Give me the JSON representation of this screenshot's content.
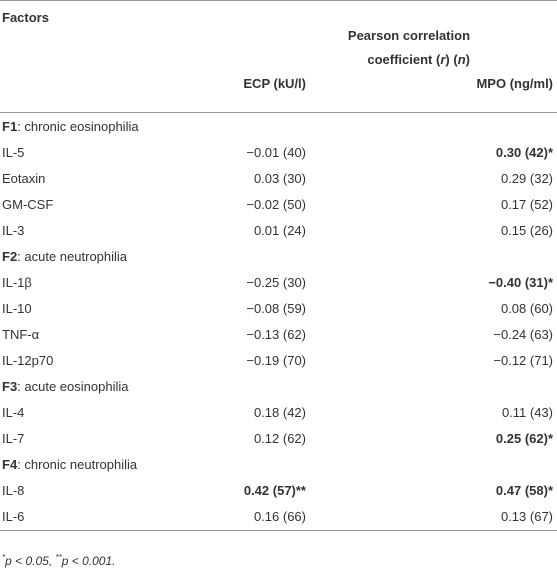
{
  "header": {
    "factors": "Factors",
    "pearson_line1": "Pearson correlation",
    "pearson_line2": "coefficient (r) (n)",
    "col_ecp": "ECP (kU/l)",
    "col_mpo": "MPO (ng/ml)"
  },
  "rows": [
    {
      "type": "section",
      "key": "F1",
      "label": ": chronic eosinophilia"
    },
    {
      "type": "data",
      "factor": "IL-5",
      "ecp": "−0.01 (40)",
      "ecp_bold": false,
      "mpo": "0.30 (42)*",
      "mpo_bold": true
    },
    {
      "type": "data",
      "factor": "Eotaxin",
      "ecp": "0.03 (30)",
      "ecp_bold": false,
      "mpo": "0.29 (32)",
      "mpo_bold": false
    },
    {
      "type": "data",
      "factor": "GM-CSF",
      "ecp": "−0.02 (50)",
      "ecp_bold": false,
      "mpo": "0.17 (52)",
      "mpo_bold": false
    },
    {
      "type": "data",
      "factor": "IL-3",
      "ecp": "0.01 (24)",
      "ecp_bold": false,
      "mpo": "0.15 (26)",
      "mpo_bold": false
    },
    {
      "type": "section",
      "key": "F2",
      "label": ": acute neutrophilia"
    },
    {
      "type": "data",
      "factor": "IL-1β",
      "ecp": "−0.25 (30)",
      "ecp_bold": false,
      "mpo": "−0.40 (31)*",
      "mpo_bold": true
    },
    {
      "type": "data",
      "factor": "IL-10",
      "ecp": "−0.08 (59)",
      "ecp_bold": false,
      "mpo": "0.08 (60)",
      "mpo_bold": false
    },
    {
      "type": "data",
      "factor": "TNF-α",
      "ecp": "−0.13 (62)",
      "ecp_bold": false,
      "mpo": "−0.24 (63)",
      "mpo_bold": false
    },
    {
      "type": "data",
      "factor": "IL-12p70",
      "ecp": "−0.19 (70)",
      "ecp_bold": false,
      "mpo": "−0.12 (71)",
      "mpo_bold": false
    },
    {
      "type": "section",
      "key": "F3",
      "label": ": acute eosinophilia"
    },
    {
      "type": "data",
      "factor": "IL-4",
      "ecp": "0.18 (42)",
      "ecp_bold": false,
      "mpo": "0.11 (43)",
      "mpo_bold": false
    },
    {
      "type": "data",
      "factor": "IL-7",
      "ecp": "0.12 (62)",
      "ecp_bold": false,
      "mpo": "0.25 (62)*",
      "mpo_bold": true
    },
    {
      "type": "section",
      "key": "F4",
      "label": ": chronic neutrophilia"
    },
    {
      "type": "data",
      "factor": "IL-8",
      "ecp": "0.42 (57)**",
      "ecp_bold": true,
      "mpo": "0.47 (58)*",
      "mpo_bold": true
    },
    {
      "type": "data",
      "factor": "IL-6",
      "ecp": "0.16 (66)",
      "ecp_bold": false,
      "mpo": "0.13 (67)",
      "mpo_bold": false
    }
  ],
  "footnote": {
    "mark1": "*",
    "text1": "p < 0.05, ",
    "mark2": "**",
    "text2": "p < 0.001."
  }
}
